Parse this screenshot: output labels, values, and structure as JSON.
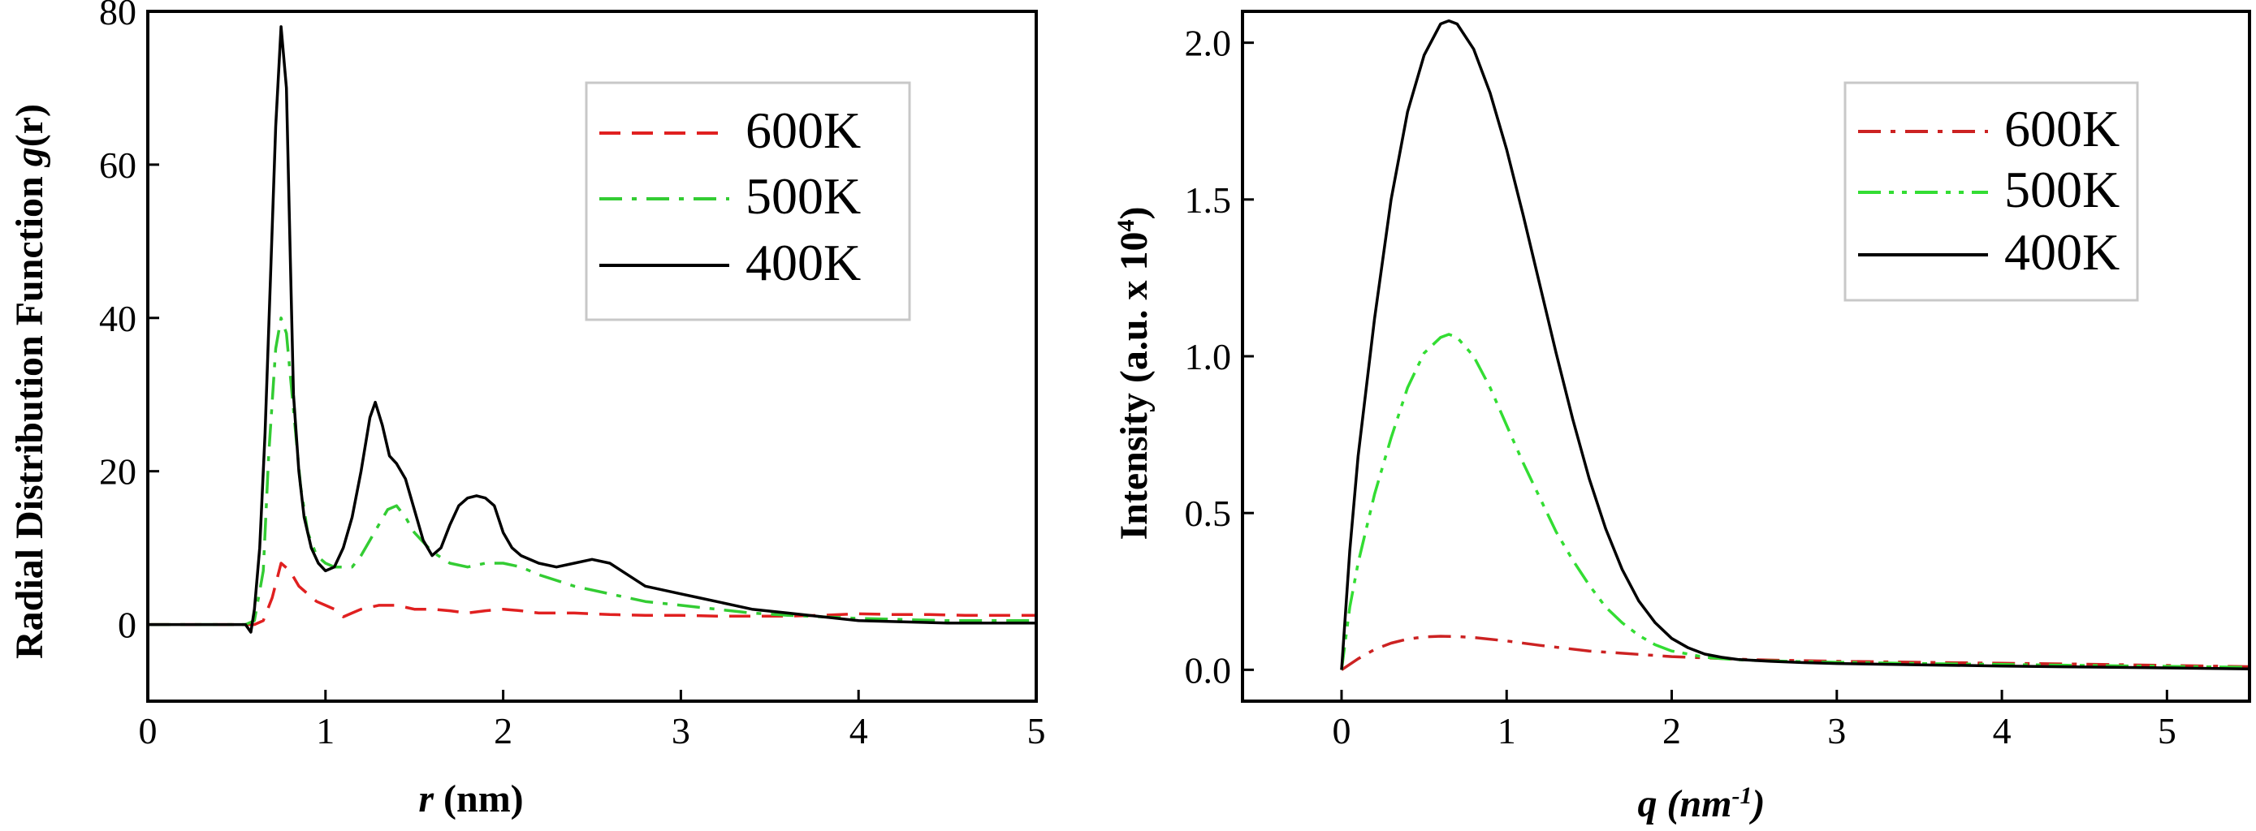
{
  "chart_data": [
    {
      "type": "line",
      "xlabel_var": "r",
      "xlabel_unit": " (nm)",
      "ylabel_main": "Radial Distribution Function ",
      "ylabel_var": "g",
      "ylabel_end": "(r)",
      "xlim": [
        0,
        5
      ],
      "ylim": [
        -10,
        80
      ],
      "xticks": [
        0,
        1,
        2,
        3,
        4,
        5
      ],
      "yticks": [
        0,
        20,
        40,
        60,
        80
      ],
      "legend_position": "top-right",
      "series": [
        {
          "name": "600K",
          "color": "#e02020",
          "dash": "dashed",
          "x": [
            0,
            0.55,
            0.6,
            0.65,
            0.7,
            0.75,
            0.8,
            0.85,
            0.9,
            0.95,
            1.0,
            1.05,
            1.1,
            1.15,
            1.2,
            1.3,
            1.4,
            1.5,
            1.6,
            1.7,
            1.8,
            1.9,
            2.0,
            2.1,
            2.2,
            2.4,
            2.6,
            2.8,
            3.0,
            3.2,
            3.4,
            3.6,
            3.8,
            4.0,
            4.2,
            4.4,
            4.6,
            4.8,
            5.0
          ],
          "values": [
            0,
            0,
            0,
            0.5,
            3.5,
            8,
            7,
            5,
            4,
            3,
            2.5,
            2,
            1,
            1.5,
            2,
            2.5,
            2.5,
            2,
            2,
            1.8,
            1.5,
            1.8,
            2,
            1.8,
            1.5,
            1.5,
            1.3,
            1.2,
            1.2,
            1.1,
            1.1,
            1.1,
            1.2,
            1.4,
            1.3,
            1.3,
            1.2,
            1.2,
            1.2
          ]
        },
        {
          "name": "500K",
          "color": "#33cc33",
          "dash": "dashdot",
          "x": [
            0,
            0.55,
            0.6,
            0.65,
            0.68,
            0.72,
            0.75,
            0.78,
            0.82,
            0.86,
            0.9,
            0.95,
            1.0,
            1.05,
            1.1,
            1.15,
            1.2,
            1.25,
            1.3,
            1.35,
            1.4,
            1.45,
            1.5,
            1.6,
            1.7,
            1.8,
            1.9,
            2.0,
            2.1,
            2.2,
            2.4,
            2.6,
            2.8,
            3.0,
            3.2,
            3.4,
            3.6,
            3.8,
            4.0,
            4.5,
            5.0
          ],
          "values": [
            0,
            0,
            0.5,
            7,
            22,
            36,
            40,
            38,
            28,
            18,
            12,
            9,
            8,
            7.5,
            7.5,
            7.5,
            9,
            11,
            13,
            15,
            15.5,
            14,
            12,
            9.5,
            8,
            7.5,
            8,
            8,
            7.5,
            6.5,
            5,
            4,
            3,
            2.5,
            2,
            1.5,
            1.2,
            1,
            0.8,
            0.5,
            0.5
          ]
        },
        {
          "name": "400K",
          "color": "#000000",
          "dash": "solid",
          "x": [
            0,
            0.55,
            0.58,
            0.6,
            0.63,
            0.66,
            0.69,
            0.72,
            0.75,
            0.78,
            0.8,
            0.82,
            0.85,
            0.88,
            0.92,
            0.96,
            1.0,
            1.05,
            1.1,
            1.15,
            1.2,
            1.25,
            1.28,
            1.32,
            1.36,
            1.4,
            1.45,
            1.5,
            1.55,
            1.6,
            1.65,
            1.7,
            1.75,
            1.8,
            1.85,
            1.9,
            1.95,
            2.0,
            2.05,
            2.1,
            2.2,
            2.3,
            2.4,
            2.5,
            2.6,
            2.7,
            2.8,
            2.9,
            3.0,
            3.1,
            3.2,
            3.3,
            3.4,
            3.6,
            3.8,
            4.0,
            4.5,
            5.0
          ],
          "values": [
            0,
            0,
            -1,
            2,
            10,
            25,
            45,
            65,
            78,
            70,
            50,
            30,
            20,
            14,
            10,
            8,
            7,
            7.5,
            10,
            14,
            20,
            27,
            29,
            26,
            22,
            21,
            19,
            15,
            11,
            9,
            10,
            13,
            15.5,
            16.5,
            16.8,
            16.5,
            15.5,
            12,
            10,
            9,
            8,
            7.5,
            8,
            8.5,
            8,
            6.5,
            5,
            4.5,
            4,
            3.5,
            3,
            2.5,
            2,
            1.5,
            1,
            0.5,
            0.2,
            0.2
          ]
        }
      ]
    },
    {
      "type": "line",
      "xlabel_var": "q",
      "xlabel_unit": " (nm",
      "xlabel_sup": "-1",
      "xlabel_end": ")",
      "ylabel_main": "Intensity (a.u. x 10",
      "ylabel_sup": "4",
      "ylabel_end": ")",
      "xlim": [
        -0.6,
        5.5
      ],
      "ylim": [
        -0.1,
        2.1
      ],
      "xticks": [
        0,
        1,
        2,
        3,
        4,
        5
      ],
      "yticks": [
        "0.0",
        "0.5",
        "1.0",
        "1.5",
        "2.0"
      ],
      "legend_position": "top-right",
      "series": [
        {
          "name": "600K",
          "color": "#cc2222",
          "dash": "dashdot",
          "x": [
            0,
            0.1,
            0.2,
            0.3,
            0.4,
            0.5,
            0.6,
            0.7,
            0.8,
            1.0,
            1.2,
            1.5,
            2.0,
            2.5,
            3.0,
            3.5,
            4.0,
            4.5,
            5.0,
            5.5
          ],
          "values": [
            0,
            0.035,
            0.065,
            0.085,
            0.098,
            0.105,
            0.107,
            0.106,
            0.103,
            0.092,
            0.078,
            0.06,
            0.042,
            0.032,
            0.027,
            0.024,
            0.021,
            0.018,
            0.014,
            0.01
          ]
        },
        {
          "name": "500K",
          "color": "#33dd33",
          "dash": "dashdotdot",
          "x": [
            0,
            0.05,
            0.1,
            0.2,
            0.3,
            0.4,
            0.5,
            0.6,
            0.65,
            0.7,
            0.8,
            0.9,
            1.0,
            1.1,
            1.2,
            1.3,
            1.4,
            1.5,
            1.6,
            1.7,
            1.8,
            1.9,
            2.0,
            2.1,
            2.2,
            2.4,
            2.6,
            3.0,
            3.5,
            4.0,
            4.5,
            5.0,
            5.5
          ],
          "values": [
            0,
            0.2,
            0.34,
            0.56,
            0.74,
            0.9,
            1.01,
            1.06,
            1.07,
            1.06,
            1.0,
            0.9,
            0.78,
            0.66,
            0.55,
            0.44,
            0.35,
            0.27,
            0.2,
            0.15,
            0.11,
            0.08,
            0.06,
            0.05,
            0.04,
            0.032,
            0.028,
            0.024,
            0.02,
            0.017,
            0.014,
            0.011,
            0.008
          ]
        },
        {
          "name": "400K",
          "color": "#000000",
          "dash": "solid",
          "x": [
            0,
            0.05,
            0.1,
            0.2,
            0.3,
            0.4,
            0.5,
            0.6,
            0.65,
            0.7,
            0.8,
            0.9,
            1.0,
            1.1,
            1.2,
            1.3,
            1.4,
            1.5,
            1.6,
            1.7,
            1.8,
            1.9,
            2.0,
            2.1,
            2.2,
            2.3,
            2.4,
            2.6,
            2.8,
            3.0,
            3.5,
            4.0,
            4.5,
            5.0,
            5.5
          ],
          "values": [
            0,
            0.38,
            0.68,
            1.12,
            1.5,
            1.78,
            1.96,
            2.06,
            2.07,
            2.06,
            1.98,
            1.84,
            1.66,
            1.45,
            1.23,
            1.01,
            0.8,
            0.61,
            0.45,
            0.32,
            0.22,
            0.15,
            0.1,
            0.07,
            0.05,
            0.04,
            0.033,
            0.027,
            0.023,
            0.02,
            0.016,
            0.012,
            0.009,
            0.006,
            0.003
          ]
        }
      ]
    }
  ]
}
